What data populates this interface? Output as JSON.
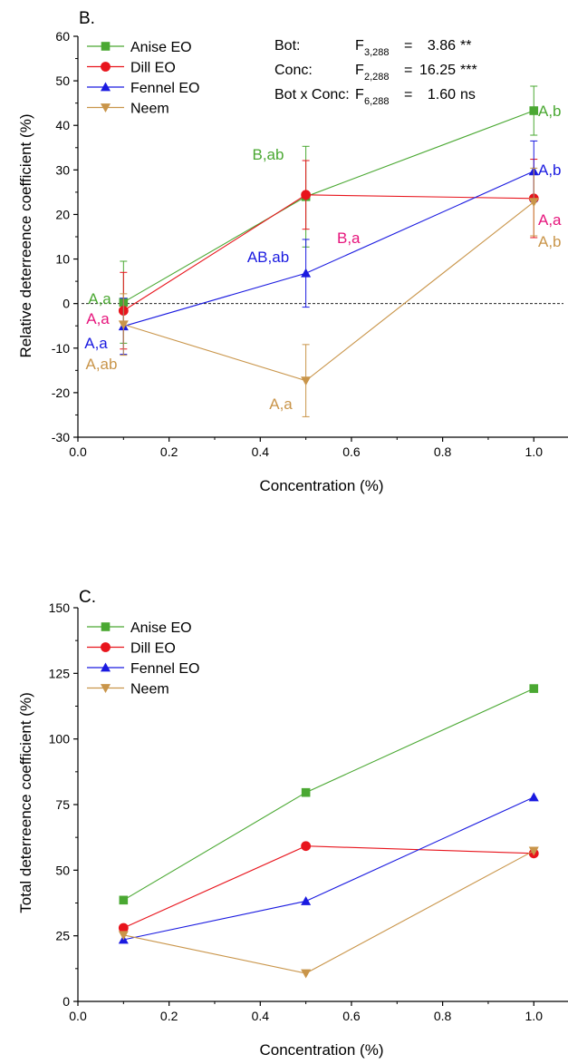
{
  "chart_data": [
    {
      "type": "line",
      "panel_label": "B.",
      "xlabel": "Concentration (%)",
      "ylabel": "Relative deterreence coefficient (%)",
      "xlim": [
        0.0,
        1.075
      ],
      "ylim": [
        -30,
        60
      ],
      "x_ticks": [
        "0.0",
        "0.2",
        "0.4",
        "0.6",
        "0.8",
        "1.0"
      ],
      "x_tick_values": [
        0.0,
        0.2,
        0.4,
        0.6,
        0.8,
        1.0
      ],
      "y_ticks": [
        "-30",
        "-20",
        "-10",
        "0",
        "10",
        "20",
        "30",
        "40",
        "50",
        "60"
      ],
      "y_tick_values": [
        -30,
        -20,
        -10,
        0,
        10,
        20,
        30,
        40,
        50,
        60
      ],
      "reference_line_y": 0,
      "legend_position": "top-left",
      "series": [
        {
          "name": "Anise EO",
          "color": "#4aa832",
          "marker": "square",
          "x": [
            0.1,
            0.5,
            1.0
          ],
          "y": [
            0.3,
            24.0,
            43.3
          ],
          "err": [
            9.2,
            11.3,
            5.5
          ],
          "labels": [
            "A,a",
            "B,ab",
            "A,b"
          ]
        },
        {
          "name": "Dill EO",
          "color": "#e8141c",
          "marker": "circle",
          "x": [
            0.1,
            0.5,
            1.0
          ],
          "y": [
            -1.6,
            24.4,
            23.6
          ],
          "err": [
            8.6,
            7.7,
            8.8
          ],
          "labels": [
            "A,a",
            "B,a",
            "A,a"
          ]
        },
        {
          "name": "Fennel EO",
          "color": "#1a1ae0",
          "marker": "triangle-up",
          "x": [
            0.1,
            0.5,
            1.0
          ],
          "y": [
            -5.1,
            6.8,
            29.7
          ],
          "err": [
            6.3,
            7.6,
            6.8
          ],
          "labels": [
            "A,a",
            "AB,ab",
            "A,b"
          ]
        },
        {
          "name": "Neem",
          "color": "#c9954a",
          "marker": "triangle-down",
          "x": [
            0.1,
            0.5,
            1.0
          ],
          "y": [
            -4.7,
            -17.3,
            22.8
          ],
          "err": [
            6.9,
            8.1,
            7.6
          ],
          "labels": [
            "A,ab",
            "A,a",
            "A,b"
          ]
        }
      ],
      "stats": [
        {
          "name": "Bot:",
          "f": "F",
          "df": "3,288",
          "eq": "=",
          "value": "3.86",
          "sig": "**"
        },
        {
          "name": "Conc:",
          "f": "F",
          "df": "2,288",
          "eq": "=",
          "value": "16.25",
          "sig": "***"
        },
        {
          "name": "Bot x Conc:",
          "f": "F",
          "df": "6,288",
          "eq": "=",
          "value": "1.60",
          "sig": "ns"
        }
      ]
    },
    {
      "type": "line",
      "panel_label": "C.",
      "xlabel": "Concentration (%)",
      "ylabel": "Total deterreence coefficient (%)",
      "xlim": [
        0.0,
        1.075
      ],
      "ylim": [
        0,
        150
      ],
      "x_ticks": [
        "0.0",
        "0.2",
        "0.4",
        "0.6",
        "0.8",
        "1.0"
      ],
      "x_tick_values": [
        0.0,
        0.2,
        0.4,
        0.6,
        0.8,
        1.0
      ],
      "y_ticks": [
        "0",
        "25",
        "50",
        "75",
        "100",
        "125",
        "150"
      ],
      "y_tick_values": [
        0,
        25,
        50,
        75,
        100,
        125,
        150
      ],
      "legend_position": "top-left",
      "series": [
        {
          "name": "Anise EO",
          "color": "#4aa832",
          "marker": "square",
          "x": [
            0.1,
            0.5,
            1.0
          ],
          "y": [
            38.6,
            79.6,
            119.2
          ]
        },
        {
          "name": "Dill EO",
          "color": "#e8141c",
          "marker": "circle",
          "x": [
            0.1,
            0.5,
            1.0
          ],
          "y": [
            28.0,
            59.2,
            56.4
          ]
        },
        {
          "name": "Fennel EO",
          "color": "#1a1ae0",
          "marker": "triangle-up",
          "x": [
            0.1,
            0.5,
            1.0
          ],
          "y": [
            23.5,
            38.2,
            77.8
          ]
        },
        {
          "name": "Neem",
          "color": "#c9954a",
          "marker": "triangle-down",
          "x": [
            0.1,
            0.5,
            1.0
          ],
          "y": [
            25.3,
            10.7,
            57.4
          ]
        }
      ]
    }
  ]
}
